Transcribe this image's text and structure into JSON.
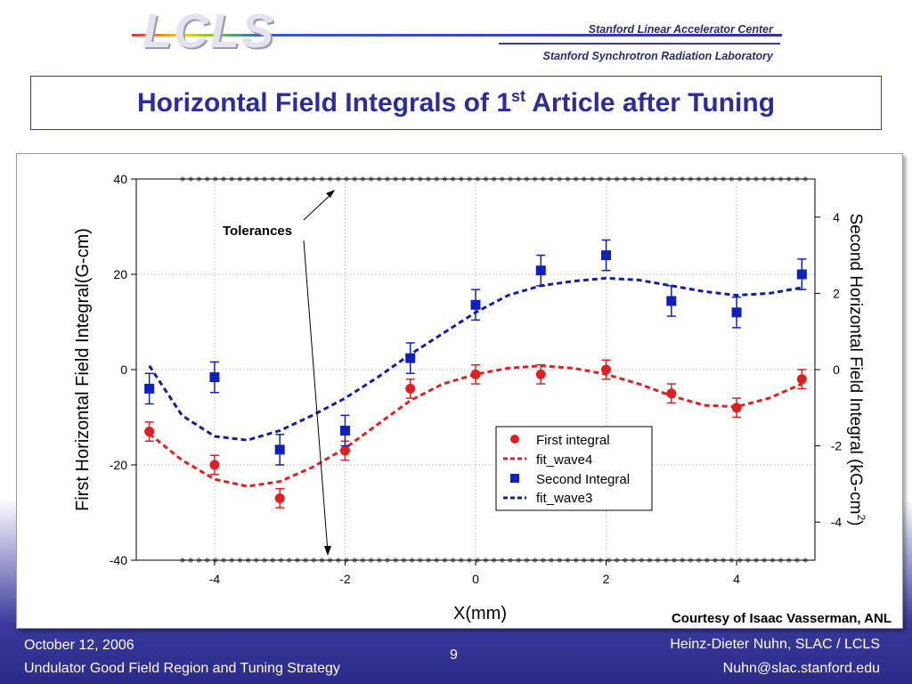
{
  "header": {
    "logo": "LCLS",
    "org_line1": "Stanford Linear Accelerator Center",
    "org_line2": "Stanford Synchrotron Radiation Laboratory"
  },
  "slide": {
    "title_pre": "Horizontal Field Integrals of 1",
    "title_sup": "st",
    "title_post": " Article after Tuning",
    "credit": "Courtesy of Isaac Vasserman, ANL",
    "annotation": "Tolerances"
  },
  "footer": {
    "date": "October 12, 2006",
    "subtitle": "Undulator Good Field Region and Tuning Strategy",
    "page": "9",
    "author": "Heinz-Dieter Nuhn, SLAC / LCLS",
    "email": "Nuhn@slac.stanford.edu"
  },
  "chart_data": {
    "type": "scatter",
    "xlabel": "X(mm)",
    "ylabel": "First Horizontal Field Integral(G-cm)",
    "y2label": "Second Horizontal Field Integral (kG-cm²)",
    "y2label_main": "Second Horizontal Field Integral  (kG-cm",
    "y2label_sup": "2",
    "y2label_end": ")",
    "xlim": [
      -5.2,
      5.2
    ],
    "ylim": [
      -40,
      40
    ],
    "y2lim": [
      -5,
      5
    ],
    "x_ticks": [
      -4,
      -2,
      0,
      2,
      4
    ],
    "x_tick_labels": [
      "-4",
      "-2",
      "0",
      "2",
      "4"
    ],
    "y_ticks": [
      -40,
      -20,
      0,
      20,
      40
    ],
    "y_tick_labels": [
      "-40",
      "-20",
      "0",
      "20",
      "40"
    ],
    "y2_ticks": [
      -4,
      -2,
      0,
      2,
      4
    ],
    "y2_tick_labels": [
      "-4",
      "-2",
      "0",
      "2",
      "4"
    ],
    "grid": true,
    "legend_position": "lower-right",
    "tolerance_levels": [
      40,
      -40
    ],
    "series": [
      {
        "name": "First integral",
        "axis": "left",
        "marker": "circle",
        "color": "#e02020",
        "x": [
          -5,
          -4,
          -3,
          -2,
          -1,
          0,
          1,
          2,
          3,
          4,
          5
        ],
        "y": [
          -13,
          -20,
          -27,
          -17,
          -4,
          -1,
          -1,
          0,
          -5,
          -8,
          -2
        ],
        "err": [
          2,
          2,
          2,
          2,
          2,
          2,
          2,
          2,
          2,
          2,
          2
        ]
      },
      {
        "name": "fit_wave4",
        "axis": "left",
        "style": "dashed",
        "color": "#e02020",
        "x": [
          -5,
          -4.5,
          -4,
          -3.5,
          -3,
          -2.5,
          -2,
          -1.5,
          -1,
          -0.5,
          0,
          0.5,
          1,
          1.5,
          2,
          2.5,
          3,
          3.5,
          4,
          4.5,
          5
        ],
        "y": [
          -13.5,
          -19,
          -23,
          -24.5,
          -23.5,
          -20.5,
          -16.5,
          -11.5,
          -6.5,
          -3,
          -1,
          0.3,
          0.8,
          0.3,
          -1,
          -3,
          -5.5,
          -7.5,
          -7.8,
          -6,
          -3
        ]
      },
      {
        "name": "Second Integral",
        "axis": "right",
        "marker": "square",
        "color": "#1020c0",
        "x": [
          -5,
          -4,
          -3,
          -2,
          -1,
          0,
          1,
          2,
          3,
          4,
          5
        ],
        "y": [
          -0.5,
          -0.2,
          -2.1,
          -1.6,
          0.3,
          1.7,
          2.6,
          3.0,
          1.8,
          1.5,
          2.5
        ],
        "err": [
          0.4,
          0.4,
          0.4,
          0.4,
          0.4,
          0.4,
          0.4,
          0.4,
          0.4,
          0.4,
          0.4
        ]
      },
      {
        "name": "fit_wave3",
        "axis": "right",
        "style": "dashed",
        "color": "#1020a0",
        "x": [
          -5,
          -4.5,
          -4,
          -3.5,
          -3,
          -2.5,
          -2,
          -1.5,
          -1,
          -0.5,
          0,
          0.5,
          1,
          1.5,
          2,
          2.5,
          3,
          3.5,
          4,
          4.5,
          5
        ],
        "y": [
          0.1,
          -1.2,
          -1.75,
          -1.85,
          -1.6,
          -1.2,
          -0.75,
          -0.2,
          0.4,
          0.95,
          1.5,
          1.95,
          2.2,
          2.32,
          2.4,
          2.35,
          2.2,
          2.05,
          1.95,
          2.0,
          2.15
        ]
      }
    ]
  }
}
